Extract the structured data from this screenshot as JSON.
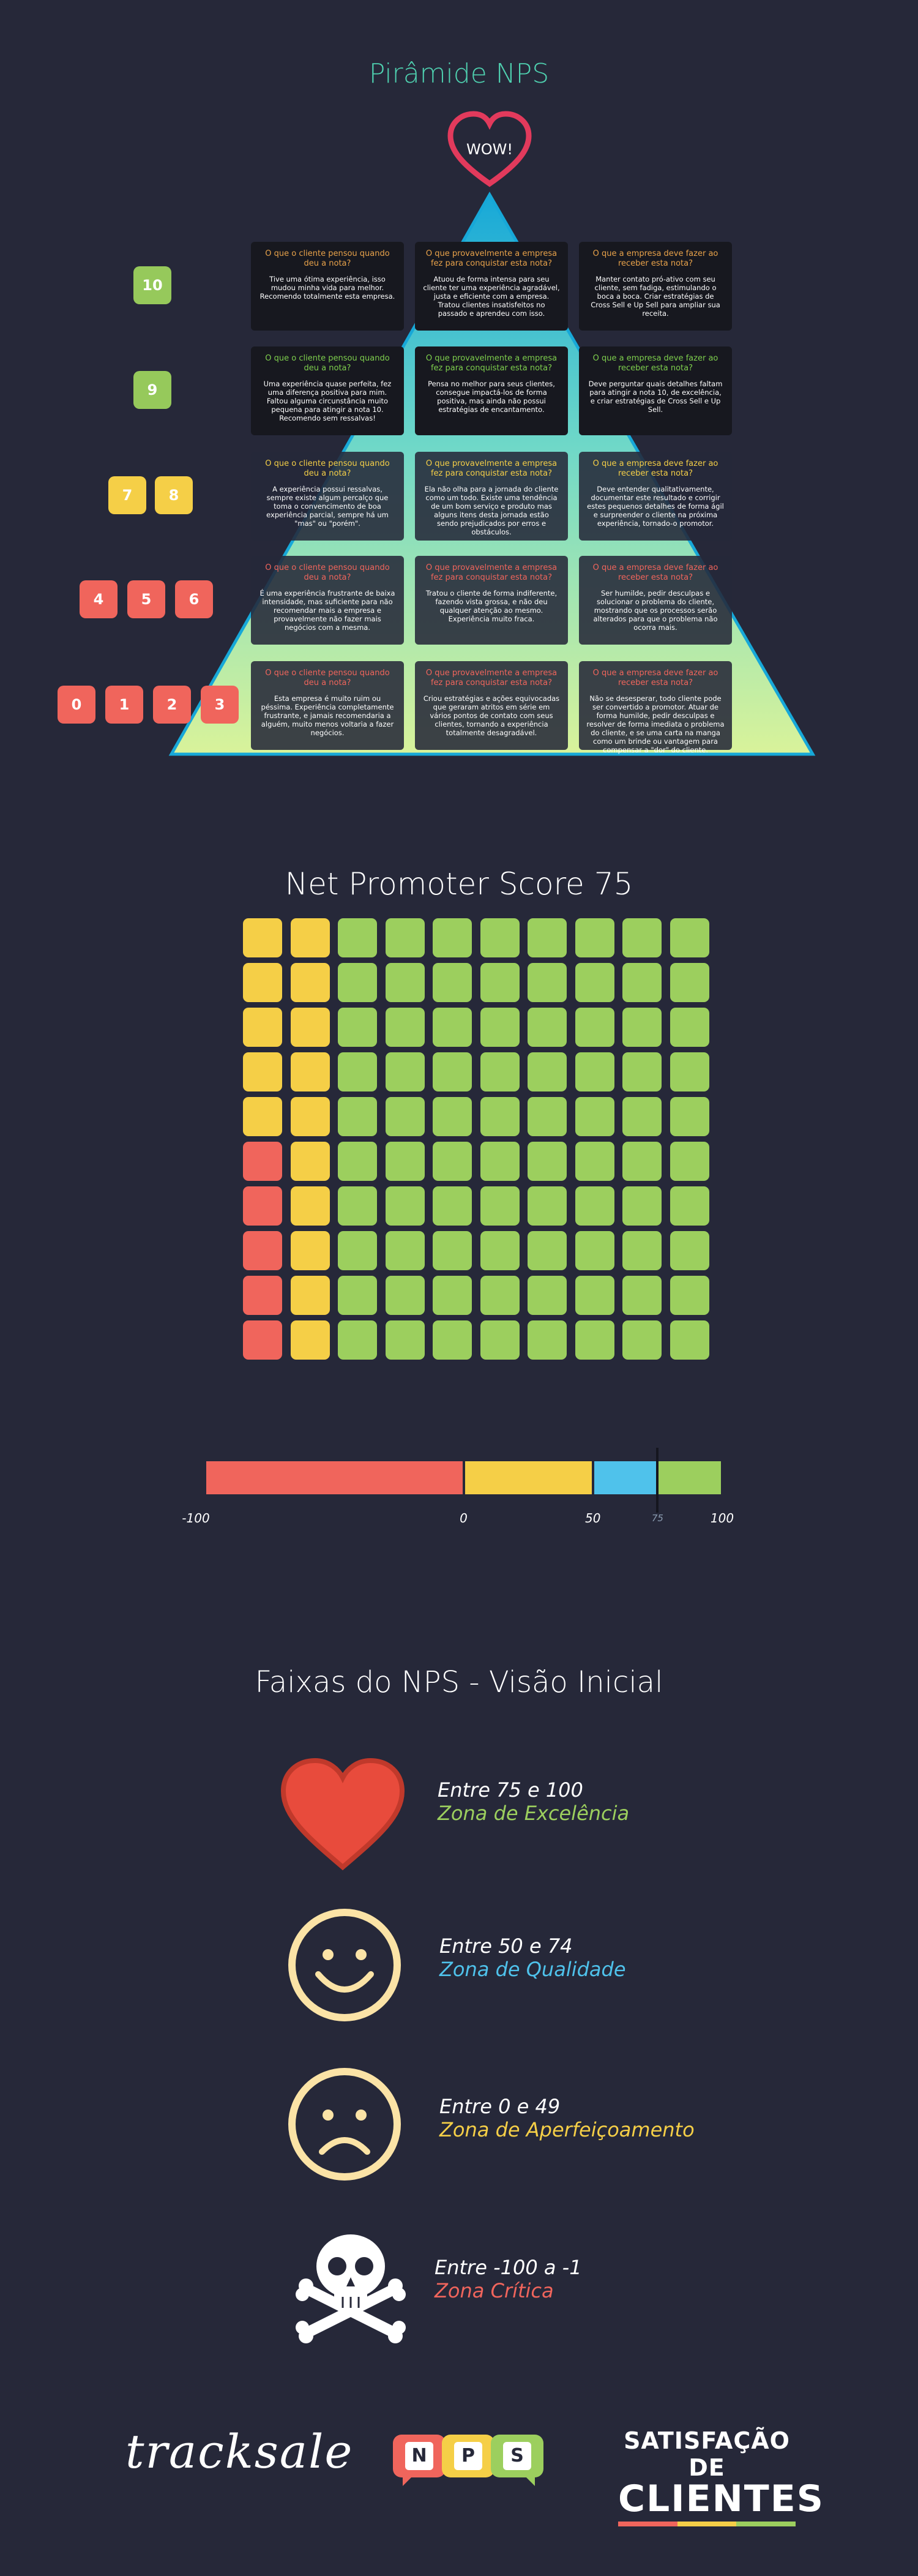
{
  "pyramid": {
    "title": "Pirâmide NPS",
    "wow": "WOW!",
    "rows": [
      {
        "scores": [
          "10"
        ],
        "score_color": "#96c95b",
        "q_color": "#e8a24a",
        "cards": [
          {
            "q": "O que o cliente pensou quando deu a nota?",
            "a": "Tive uma ótima experiência, isso mudou minha vida para melhor. Recomendo totalmente esta empresa."
          },
          {
            "q": "O que provavelmente a empresa fez para conquistar esta nota?",
            "a": "Atuou de forma intensa para seu cliente ter uma experiência agradável, justa e eficiente com a empresa. Tratou clientes insatisfeitos no passado e aprendeu com isso."
          },
          {
            "q": "O que a empresa deve fazer ao receber esta nota?",
            "a": "Manter contato pró-ativo com seu cliente, sem fadiga, estimulando o boca a boca. Criar estratégias de Cross Sell e Up Sell para ampliar sua receita."
          }
        ]
      },
      {
        "scores": [
          "9"
        ],
        "score_color": "#96c95b",
        "q_color": "#7ecf4d",
        "cards": [
          {
            "q": "O que o cliente pensou quando deu a nota?",
            "a": "Uma experiência quase perfeita, fez uma diferença positiva para mim. Faltou alguma circunstância muito pequena para atingir a nota 10. Recomendo sem ressalvas!"
          },
          {
            "q": "O que provavelmente a empresa fez para conquistar esta nota?",
            "a": "Pensa no melhor para seus clientes, consegue impactá-los de forma positiva, mas ainda não possui estratégias de encantamento."
          },
          {
            "q": "O que a empresa deve fazer ao receber esta nota?",
            "a": "Deve perguntar quais detalhes faltam para atingir a nota 10, de excelência, e criar estratégias de Cross Sell e Up Sell."
          }
        ]
      },
      {
        "scores": [
          "7",
          "8"
        ],
        "score_color": "#f5cf47",
        "q_color": "#f5cf47",
        "cards": [
          {
            "q": "O que o cliente pensou quando deu a nota?",
            "a": "A experiência possui ressalvas, sempre existe algum percalço que toma o convencimento de boa experiência parcial, sempre há um \"mas\" ou \"porém\"."
          },
          {
            "q": "O que provavelmente a empresa fez para conquistar esta nota?",
            "a": "Ela não olha para a jornada do cliente como um todo. Existe uma tendência de um bom serviço e produto mas alguns itens desta jornada estão sendo prejudicados por erros e obstáculos."
          },
          {
            "q": "O que a empresa deve fazer ao receber esta nota?",
            "a": "Deve entender qualitativamente, documentar este resultado e corrigir estes pequenos detalhes de forma ágil e surpreender o cliente na próxima experiência, tornado-o promotor."
          }
        ]
      },
      {
        "scores": [
          "4",
          "5",
          "6"
        ],
        "score_color": "#f0655c",
        "q_color": "#f0655c",
        "cards": [
          {
            "q": "O que o cliente pensou quando deu a nota?",
            "a": "É uma experiência frustrante de baixa intensidade, mas suficiente para não recomendar mais a empresa e provavelmente não fazer mais negócios com a mesma."
          },
          {
            "q": "O que provavelmente a empresa fez para conquistar esta nota?",
            "a": "Tratou o cliente de forma indiferente, fazendo vista grossa, e não deu qualquer atenção ao mesmo. Experiência muito fraca."
          },
          {
            "q": "O que a empresa deve fazer ao receber esta nota?",
            "a": "Ser humilde, pedir desculpas e solucionar o problema do cliente, mostrando que os processos serão alterados para que o problema não ocorra mais."
          }
        ]
      },
      {
        "scores": [
          "0",
          "1",
          "2",
          "3"
        ],
        "score_color": "#f0655c",
        "q_color": "#f0655c",
        "cards": [
          {
            "q": "O que o cliente pensou quando deu a nota?",
            "a": "Esta empresa é muito ruim ou péssima. Experiência completamente frustrante, e jamais recomendaria a alguém, muito menos voltaria a fazer negócios."
          },
          {
            "q": "O que provavelmente a empresa fez para conquistar esta nota?",
            "a": "Criou estratégias e ações equivocadas que geraram atritos em série em vários pontos de contato com seus clientes, tornando a experiência totalmente desagradável."
          },
          {
            "q": "O que a empresa deve fazer ao receber esta nota?",
            "a": "Não se desesperar, todo cliente pode ser convertido a promotor. Atuar de forma humilde, pedir desculpas e resolver de forma imediata o problema do cliente, e se uma carta na manga como um brinde ou vantagem para compensar a \"dor\" do cliente."
          }
        ]
      }
    ]
  },
  "nps": {
    "title": "Net Promoter Score 75",
    "grid_rows": [
      [
        "Y",
        "Y",
        "G",
        "G",
        "G",
        "G",
        "G",
        "G",
        "G",
        "G"
      ],
      [
        "Y",
        "Y",
        "G",
        "G",
        "G",
        "G",
        "G",
        "G",
        "G",
        "G"
      ],
      [
        "Y",
        "Y",
        "G",
        "G",
        "G",
        "G",
        "G",
        "G",
        "G",
        "G"
      ],
      [
        "Y",
        "Y",
        "G",
        "G",
        "G",
        "G",
        "G",
        "G",
        "G",
        "G"
      ],
      [
        "Y",
        "Y",
        "G",
        "G",
        "G",
        "G",
        "G",
        "G",
        "G",
        "G"
      ],
      [
        "R",
        "Y",
        "G",
        "G",
        "G",
        "G",
        "G",
        "G",
        "G",
        "G"
      ],
      [
        "R",
        "Y",
        "G",
        "G",
        "G",
        "G",
        "G",
        "G",
        "G",
        "G"
      ],
      [
        "R",
        "Y",
        "G",
        "G",
        "G",
        "G",
        "G",
        "G",
        "G",
        "G"
      ],
      [
        "R",
        "Y",
        "G",
        "G",
        "G",
        "G",
        "G",
        "G",
        "G",
        "G"
      ],
      [
        "R",
        "Y",
        "G",
        "G",
        "G",
        "G",
        "G",
        "G",
        "G",
        "G"
      ]
    ],
    "colors": {
      "R": "#f0655c",
      "Y": "#f5cf47",
      "G": "#9ccf5e"
    }
  },
  "scale": {
    "labels": [
      "-100",
      "0",
      "50",
      "75",
      "100"
    ],
    "marker_value": 75,
    "segments": [
      {
        "from": -100,
        "to": 0,
        "color": "#f0655c"
      },
      {
        "from": 0,
        "to": 50,
        "color": "#f5cf47"
      },
      {
        "from": 50,
        "to": 75,
        "color": "#4fc2eb"
      },
      {
        "from": 75,
        "to": 100,
        "color": "#9ccf5e"
      }
    ]
  },
  "zones": {
    "title": "Faixas do NPS - Visão Inicial",
    "items": [
      {
        "range": "Entre 75 e 100",
        "name": "Zona de Excelência",
        "color": "#9ccf5e",
        "icon": "heart-icon"
      },
      {
        "range": "Entre 50 e 74",
        "name": "Zona de Qualidade",
        "color": "#4fc2eb",
        "icon": "smiley-icon"
      },
      {
        "range": "Entre 0 e 49",
        "name": "Zona de Aperfeiçoamento",
        "color": "#f5cf47",
        "icon": "sad-face-icon"
      },
      {
        "range": "Entre -100 a -1",
        "name": "Zona Crítica",
        "color": "#f0655c",
        "icon": "skull-crossbones-icon"
      }
    ]
  },
  "footer": {
    "brand": "tracksale",
    "nps_letters": [
      "N",
      "P",
      "S"
    ],
    "satisfacao_line1": "SATISFAÇÃO DE",
    "satisfacao_line2": "CLIENTES"
  }
}
